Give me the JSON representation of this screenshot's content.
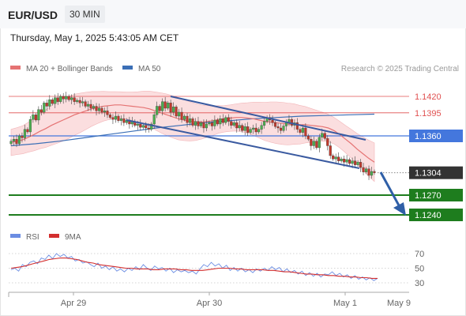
{
  "header": {
    "symbol": "EUR/USD",
    "timeframe": "30 MIN",
    "timestamp": "Thursday, May 1, 2025 5:43:05 AM CET"
  },
  "legend": {
    "ma20": "MA 20 + Bollinger Bands",
    "ma50": "MA 50",
    "rsi": "RSI",
    "ma9": "9MA"
  },
  "credit": "Research © 2025 Trading Central",
  "colors": {
    "ma20": "#e57373",
    "bollinger_fill": "#f9d0d2",
    "ma50": "#3b6fb6",
    "channel": "#3a5aa0",
    "resistance": "#e05050",
    "pivot": "#4477dd",
    "support": "#1e7d1e",
    "last_price": "#333333",
    "candle_up": "#4caf50",
    "candle_down": "#c0392b",
    "rsi": "#6b8de3",
    "rsi_ma": "#d32f2f",
    "arrow": "#2f5fa7"
  },
  "chart_data": [
    {
      "type": "candlestick",
      "title": "EUR/USD",
      "ylim": [
        1.1218,
        1.1475
      ],
      "levels": [
        {
          "value": 1.142,
          "label": "1.1420",
          "kind": "resistance"
        },
        {
          "value": 1.1395,
          "label": "1.1395",
          "kind": "resistance"
        },
        {
          "value": 1.136,
          "label": "1.1360",
          "kind": "pivot"
        },
        {
          "value": 1.1304,
          "label": "1.1304",
          "kind": "last"
        },
        {
          "value": 1.127,
          "label": "1.1270",
          "kind": "support"
        },
        {
          "value": 1.124,
          "label": "1.1240",
          "kind": "support"
        }
      ],
      "x_ticks": [
        "Apr 29",
        "Apr 30",
        "May 1",
        "May 9"
      ],
      "close": [
        1.1352,
        1.1355,
        1.1348,
        1.136,
        1.1357,
        1.137,
        1.1366,
        1.1385,
        1.1392,
        1.1384,
        1.14,
        1.1396,
        1.141,
        1.1405,
        1.1415,
        1.1409,
        1.1418,
        1.1412,
        1.142,
        1.1416,
        1.142,
        1.1415,
        1.1418,
        1.1412,
        1.1414,
        1.141,
        1.1412,
        1.1405,
        1.1408,
        1.1402,
        1.1405,
        1.1398,
        1.1402,
        1.1396,
        1.1398,
        1.1392,
        1.1388,
        1.1385,
        1.139,
        1.1383,
        1.1386,
        1.138,
        1.1384,
        1.1378,
        1.1382,
        1.1376,
        1.1378,
        1.1373,
        1.1376,
        1.1372,
        1.137,
        1.1378,
        1.1392,
        1.1405,
        1.1398,
        1.1412,
        1.1402,
        1.141,
        1.1396,
        1.1404,
        1.139,
        1.1396,
        1.1385,
        1.139,
        1.138,
        1.1386,
        1.1376,
        1.1382,
        1.1375,
        1.138,
        1.1372,
        1.1378,
        1.138,
        1.1375,
        1.1384,
        1.1378,
        1.1386,
        1.138,
        1.1388,
        1.1382,
        1.1376,
        1.138,
        1.1372,
        1.1376,
        1.1368,
        1.1374,
        1.1365,
        1.137,
        1.1372,
        1.1366,
        1.137,
        1.1376,
        1.1382,
        1.1388,
        1.1384,
        1.138,
        1.1374,
        1.1372,
        1.1368,
        1.1375,
        1.138,
        1.1385,
        1.1376,
        1.138,
        1.137,
        1.1365,
        1.1372,
        1.136,
        1.1355,
        1.1345,
        1.1352,
        1.1342,
        1.1358,
        1.1364,
        1.1356,
        1.1345,
        1.133,
        1.1325,
        1.1328,
        1.1322,
        1.1325,
        1.132,
        1.1324,
        1.1318,
        1.1322,
        1.1316,
        1.132,
        1.1312,
        1.1305,
        1.131,
        1.13,
        1.1306,
        1.1304
      ],
      "ma20": [
        1.135,
        1.1352,
        1.1354,
        1.1358,
        1.1362,
        1.1367,
        1.1371,
        1.1376,
        1.138,
        1.1384,
        1.1388,
        1.1392,
        1.1395,
        1.1398,
        1.1401,
        1.1403,
        1.1405,
        1.1406,
        1.1407,
        1.1407,
        1.1406,
        1.1405,
        1.1404,
        1.1403,
        1.1401,
        1.1398,
        1.1395,
        1.1392,
        1.1389,
        1.1386,
        1.1384,
        1.1382,
        1.1381,
        1.1381,
        1.1382,
        1.1383,
        1.1385,
        1.1386,
        1.1387,
        1.1388,
        1.1388,
        1.1387,
        1.1386,
        1.1384,
        1.1382,
        1.1381,
        1.138,
        1.1379,
        1.1378,
        1.1378,
        1.1377,
        1.1377,
        1.1376,
        1.1375,
        1.1374,
        1.1372,
        1.1368,
        1.1362,
        1.1355,
        1.1348,
        1.134,
        1.1333,
        1.1326,
        1.132
      ],
      "ma20_x": [
        0.0,
        0.02,
        0.04,
        0.06,
        0.08,
        0.1,
        0.12,
        0.14,
        0.16,
        0.18,
        0.2,
        0.22,
        0.24,
        0.26,
        0.28,
        0.3,
        0.32,
        0.34,
        0.36,
        0.38,
        0.4,
        0.42,
        0.44,
        0.46,
        0.48,
        0.5,
        0.52,
        0.54,
        0.56,
        0.58,
        0.6,
        0.62,
        0.64,
        0.66,
        0.68,
        0.7,
        0.72,
        0.74,
        0.76,
        0.78,
        0.8,
        0.82,
        0.84,
        0.86,
        0.88,
        0.9,
        0.92,
        0.94,
        0.96,
        0.98,
        1.0,
        1.02,
        1.04,
        1.06,
        1.08,
        1.1,
        1.12,
        1.14,
        1.16,
        1.18,
        1.2,
        1.22,
        1.24,
        1.26
      ],
      "ma50": [
        1.1345,
        1.1348,
        1.1352,
        1.1357,
        1.1362,
        1.1367,
        1.1372,
        1.1376,
        1.138,
        1.1383,
        1.1386,
        1.1388,
        1.139,
        1.1391,
        1.1392,
        1.1393
      ]
    },
    {
      "type": "line",
      "title": "RSI",
      "ylim": [
        20,
        80
      ],
      "y_ticks": [
        70,
        50,
        30
      ],
      "rsi": [
        48,
        50,
        46,
        55,
        52,
        58,
        60,
        56,
        64,
        62,
        68,
        63,
        70,
        66,
        69,
        64,
        66,
        60,
        62,
        57,
        59,
        55,
        52,
        57,
        50,
        53,
        48,
        52,
        46,
        49,
        45,
        50,
        47,
        52,
        48,
        55,
        50,
        47,
        53,
        49,
        51,
        46,
        50,
        44,
        48,
        45,
        47,
        44,
        46,
        42,
        49,
        55,
        52,
        58,
        53,
        56,
        50,
        54,
        47,
        51,
        46,
        50,
        45,
        48,
        44,
        49,
        46,
        50,
        47,
        52,
        48,
        51,
        45,
        49,
        44,
        47,
        42,
        46,
        40,
        44,
        39,
        43,
        38,
        42,
        41,
        45,
        40,
        43,
        38,
        41,
        36,
        40,
        35,
        38,
        34,
        37,
        33,
        36
      ],
      "ma9": [
        50,
        51,
        52,
        54,
        56,
        58,
        60,
        62,
        63,
        64,
        64,
        63,
        62,
        60,
        58,
        57,
        55,
        54,
        53,
        52,
        51,
        50,
        50,
        49,
        49,
        49,
        48,
        48,
        49,
        49,
        49,
        48,
        48,
        47,
        47,
        47,
        48,
        49,
        50,
        50,
        50,
        49,
        49,
        48,
        48,
        48,
        48,
        47,
        47,
        46,
        45,
        45,
        44,
        43,
        42,
        42,
        41,
        41,
        40,
        40,
        39,
        39,
        38,
        38,
        37,
        37,
        36,
        36
      ]
    }
  ]
}
